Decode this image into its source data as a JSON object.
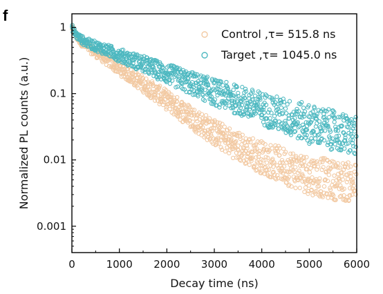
{
  "panel_label": "f",
  "colors": {
    "control": "#F2C9A2",
    "target": "#4DB8C0",
    "axis": "#000000"
  },
  "chart_data": {
    "type": "scatter",
    "xlabel": "Decay time (ns)",
    "ylabel": "Normalized PL counts (a.u.)",
    "xlim": [
      0,
      6000
    ],
    "ylim": [
      0.0004,
      1.6
    ],
    "yscale": "log",
    "xticks": [
      0,
      1000,
      2000,
      3000,
      4000,
      5000,
      6000
    ],
    "xtick_labels": [
      "0",
      "1000",
      "2000",
      "3000",
      "4000",
      "5000",
      "6000"
    ],
    "yticks": [
      1,
      0.1,
      0.01,
      0.001
    ],
    "ytick_labels": [
      "1",
      "0.1",
      "0.01",
      "0.001"
    ],
    "legend_position": "top-right",
    "marker": "open-circle",
    "series": [
      {
        "key": "control",
        "name": "Control ,τ= 515.8 ns",
        "tau": 515.8,
        "x": [
          0,
          100,
          250,
          500,
          750,
          1000,
          1500,
          2000,
          2500,
          3000,
          3500,
          4000,
          4500,
          5000,
          5500,
          6000
        ],
        "y": [
          1.0,
          0.72,
          0.55,
          0.42,
          0.32,
          0.24,
          0.14,
          0.08,
          0.045,
          0.026,
          0.016,
          0.011,
          0.008,
          0.006,
          0.005,
          0.0045
        ]
      },
      {
        "key": "target",
        "name": "Target ,τ= 1045.0 ns",
        "tau": 1045.0,
        "x": [
          0,
          100,
          250,
          500,
          750,
          1000,
          1500,
          2000,
          2500,
          3000,
          3500,
          4000,
          4500,
          5000,
          5500,
          6000
        ],
        "y": [
          1.0,
          0.75,
          0.62,
          0.52,
          0.45,
          0.38,
          0.28,
          0.2,
          0.145,
          0.105,
          0.08,
          0.06,
          0.045,
          0.035,
          0.028,
          0.022
        ]
      }
    ]
  }
}
